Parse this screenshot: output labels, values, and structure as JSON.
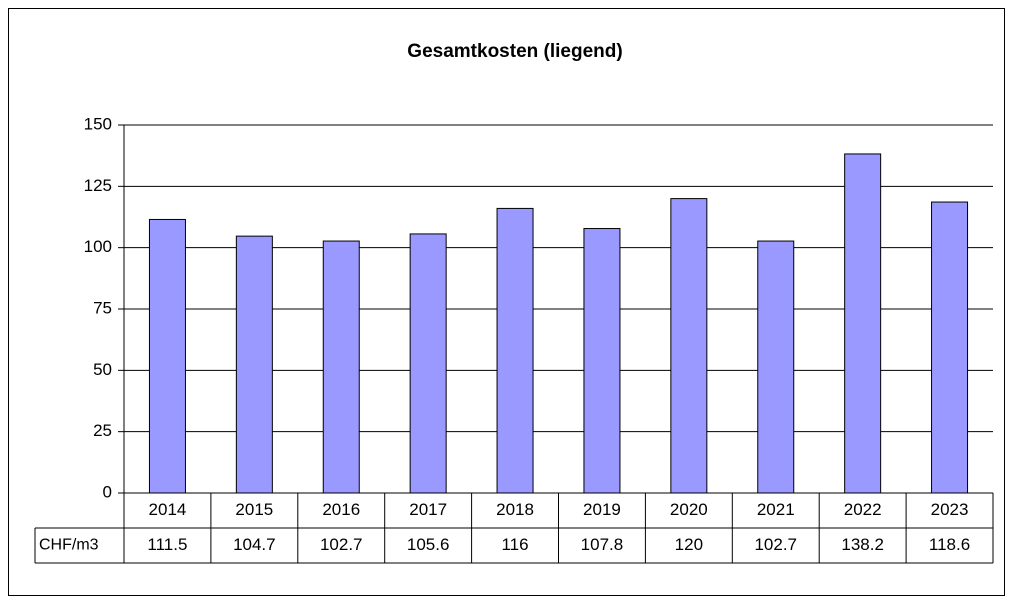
{
  "chart_data": {
    "type": "bar",
    "title": "Gesamtkosten (liegend)",
    "categories": [
      "2014",
      "2015",
      "2016",
      "2017",
      "2018",
      "2019",
      "2020",
      "2021",
      "2022",
      "2023"
    ],
    "series": [
      {
        "name": "CHF/m3",
        "color": "#9999ff",
        "values": [
          111.5,
          104.7,
          102.7,
          105.6,
          116,
          107.8,
          120,
          102.7,
          138.2,
          118.6
        ]
      }
    ],
    "ylim": [
      0,
      150
    ],
    "yticks": [
      0,
      25,
      50,
      75,
      100,
      125,
      150
    ],
    "grid": true
  }
}
